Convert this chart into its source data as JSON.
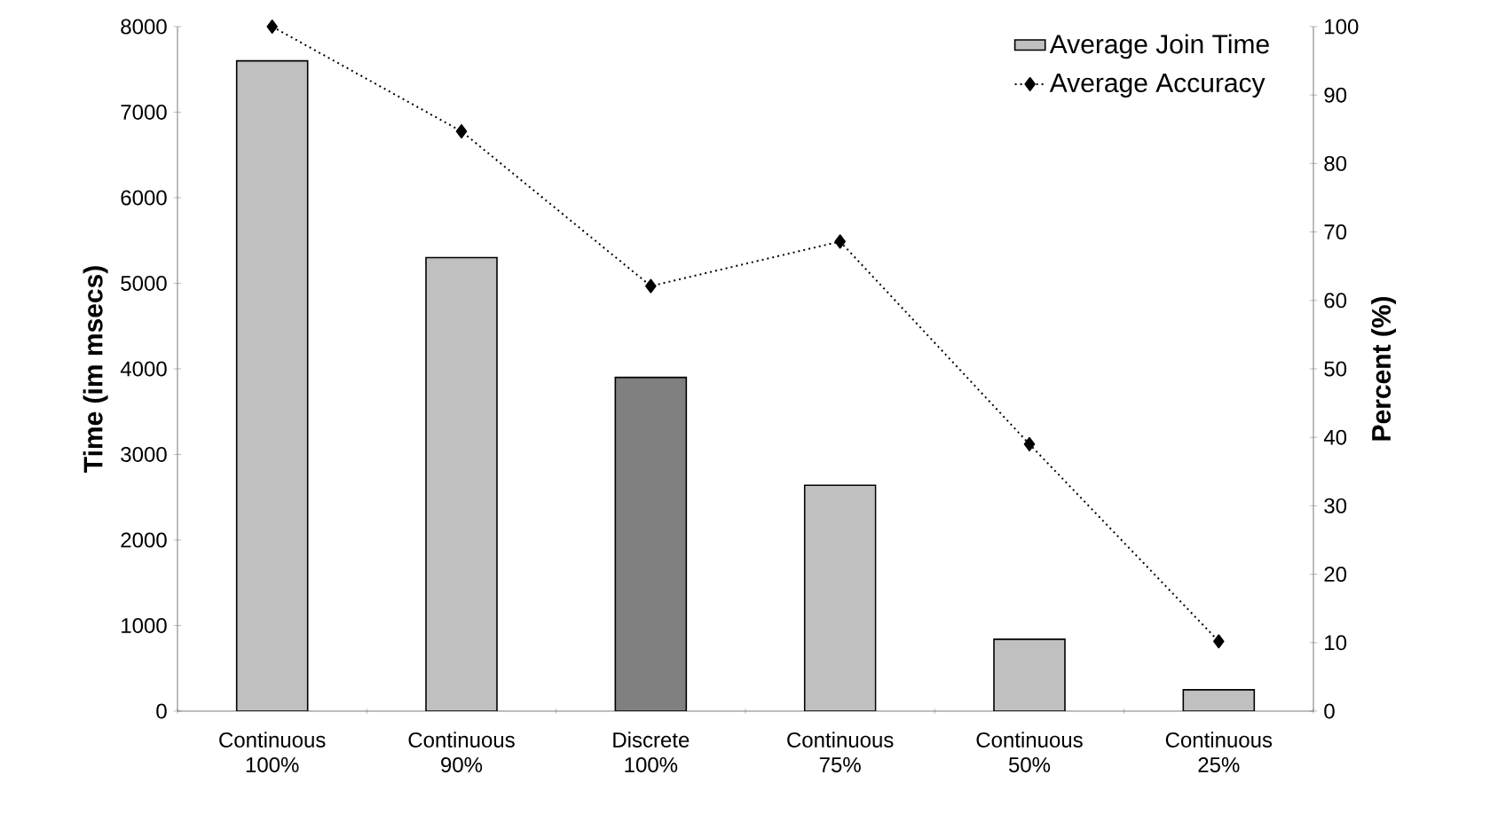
{
  "chart_data": {
    "type": "bar",
    "categories": [
      "Continuous 100%",
      "Continuous 90%",
      "Discrete 100%",
      "Continuous 75%",
      "Continuous 50%",
      "Continuous 25%"
    ],
    "ylabel": "Time (im msecs)",
    "y2label": "Percent (%)",
    "ylim": [
      0,
      8000
    ],
    "yticks": [
      0,
      1000,
      2000,
      3000,
      4000,
      5000,
      6000,
      7000,
      8000
    ],
    "y2lim": [
      0,
      100
    ],
    "y2ticks": [
      0,
      10,
      20,
      30,
      40,
      50,
      60,
      70,
      80,
      90,
      100
    ],
    "legend": "top right",
    "grid": false,
    "series": [
      {
        "name": "Average Join Time",
        "color": "#c0c0c0",
        "colors": [
          "#c0c0c0",
          "#c0c0c0",
          "#808080",
          "#c0c0c0",
          "#c0c0c0",
          "#c0c0c0"
        ],
        "values": [
          7600,
          5300,
          3900,
          2640,
          840,
          250
        ]
      },
      {
        "name": "Average Accuracy",
        "type": "line",
        "axis": "y2",
        "color": "#000000",
        "marker": "diamond",
        "line_style": "dotted",
        "values": [
          100,
          84.7,
          62.1,
          68.6,
          39,
          10.2
        ]
      }
    ]
  }
}
